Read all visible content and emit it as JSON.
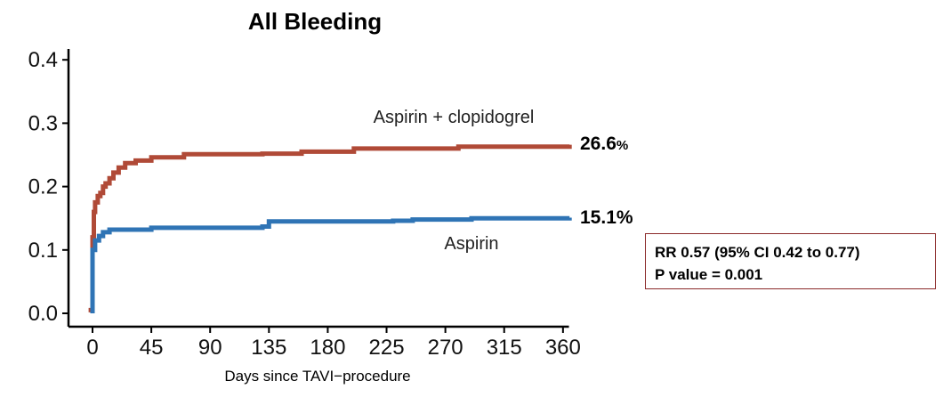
{
  "chart_data": {
    "type": "line",
    "title": "All Bleeding",
    "xlabel": "Days since TAVI−procedure",
    "ylabel": "",
    "xlim": [
      -10,
      370
    ],
    "ylim": [
      0,
      0.42
    ],
    "xticks": [
      0,
      45,
      90,
      135,
      180,
      225,
      270,
      315,
      360
    ],
    "yticks": [
      0.0,
      0.1,
      0.2,
      0.3,
      0.4
    ],
    "ytick_labels": [
      "0.0",
      "0.1",
      "0.2",
      "0.3",
      "0.4"
    ],
    "grid": false,
    "series": [
      {
        "name": "Aspirin + clopidogrel",
        "color": "#b04a37",
        "end_label": "26.6",
        "end_label_unit": "%",
        "points": [
          [
            -3,
            0.005
          ],
          [
            0,
            0.005
          ],
          [
            0,
            0.12
          ],
          [
            1,
            0.16
          ],
          [
            2,
            0.175
          ],
          [
            4,
            0.185
          ],
          [
            6,
            0.19
          ],
          [
            8,
            0.2
          ],
          [
            10,
            0.205
          ],
          [
            13,
            0.213
          ],
          [
            16,
            0.222
          ],
          [
            20,
            0.23
          ],
          [
            25,
            0.237
          ],
          [
            33,
            0.241
          ],
          [
            45,
            0.246
          ],
          [
            70,
            0.251
          ],
          [
            130,
            0.252
          ],
          [
            160,
            0.255
          ],
          [
            200,
            0.26
          ],
          [
            280,
            0.263
          ],
          [
            365,
            0.266
          ]
        ]
      },
      {
        "name": "Aspirin",
        "color": "#2f74b5",
        "end_label": "15.1%",
        "end_label_unit": "",
        "points": [
          [
            0,
            0.0
          ],
          [
            0,
            0.1
          ],
          [
            2,
            0.115
          ],
          [
            5,
            0.122
          ],
          [
            8,
            0.128
          ],
          [
            13,
            0.132
          ],
          [
            45,
            0.135
          ],
          [
            130,
            0.137
          ],
          [
            135,
            0.145
          ],
          [
            230,
            0.146
          ],
          [
            245,
            0.148
          ],
          [
            290,
            0.15
          ],
          [
            365,
            0.151
          ]
        ]
      }
    ],
    "annotation": {
      "line1": "RR 0.57 (95% CI 0.42 to 0.77)",
      "line2": "P value = 0.001"
    }
  }
}
